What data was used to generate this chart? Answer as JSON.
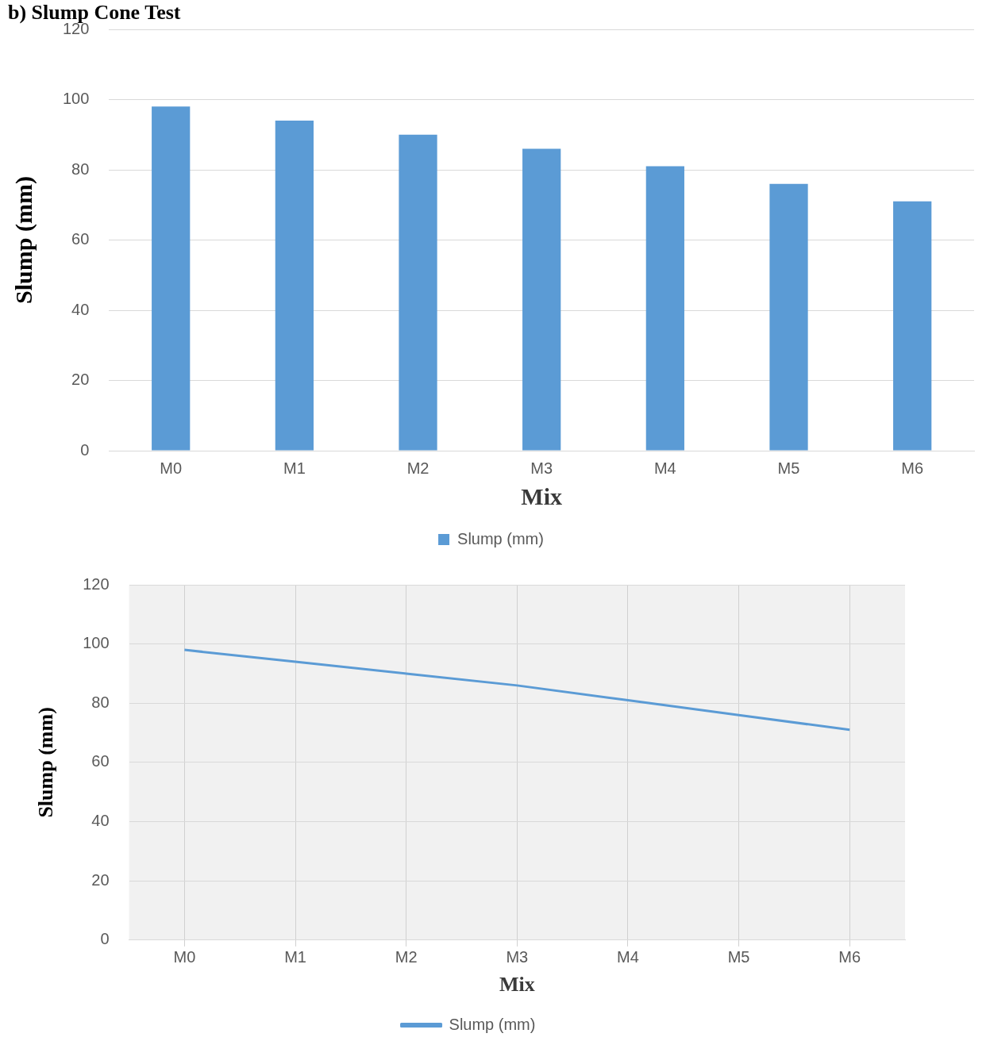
{
  "chart_data": [
    {
      "type": "bar",
      "title": "b) Slump Cone Test",
      "xlabel": "Mix",
      "ylabel": "Slump (mm)",
      "categories": [
        "M0",
        "M1",
        "M2",
        "M3",
        "M4",
        "M5",
        "M6"
      ],
      "series": [
        {
          "name": "Slump (mm)",
          "color": "#5b9bd5",
          "values": [
            98,
            94,
            90,
            86,
            81,
            76,
            71
          ]
        }
      ],
      "ylim": [
        0,
        120
      ],
      "yticks": [
        0,
        20,
        40,
        60,
        80,
        100,
        120
      ],
      "grid": "y",
      "legend": "bottom"
    },
    {
      "type": "line",
      "xlabel": "Mix",
      "ylabel": "Slump (mm)",
      "categories": [
        "M0",
        "M1",
        "M2",
        "M3",
        "M4",
        "M5",
        "M6"
      ],
      "series": [
        {
          "name": "Slump (mm)",
          "color": "#5b9bd5",
          "values": [
            98,
            94,
            90,
            86,
            81,
            76,
            71
          ]
        }
      ],
      "ylim": [
        0,
        120
      ],
      "yticks": [
        0,
        20,
        40,
        60,
        80,
        100,
        120
      ],
      "grid": true,
      "legend": "bottom",
      "marker": "none"
    }
  ]
}
